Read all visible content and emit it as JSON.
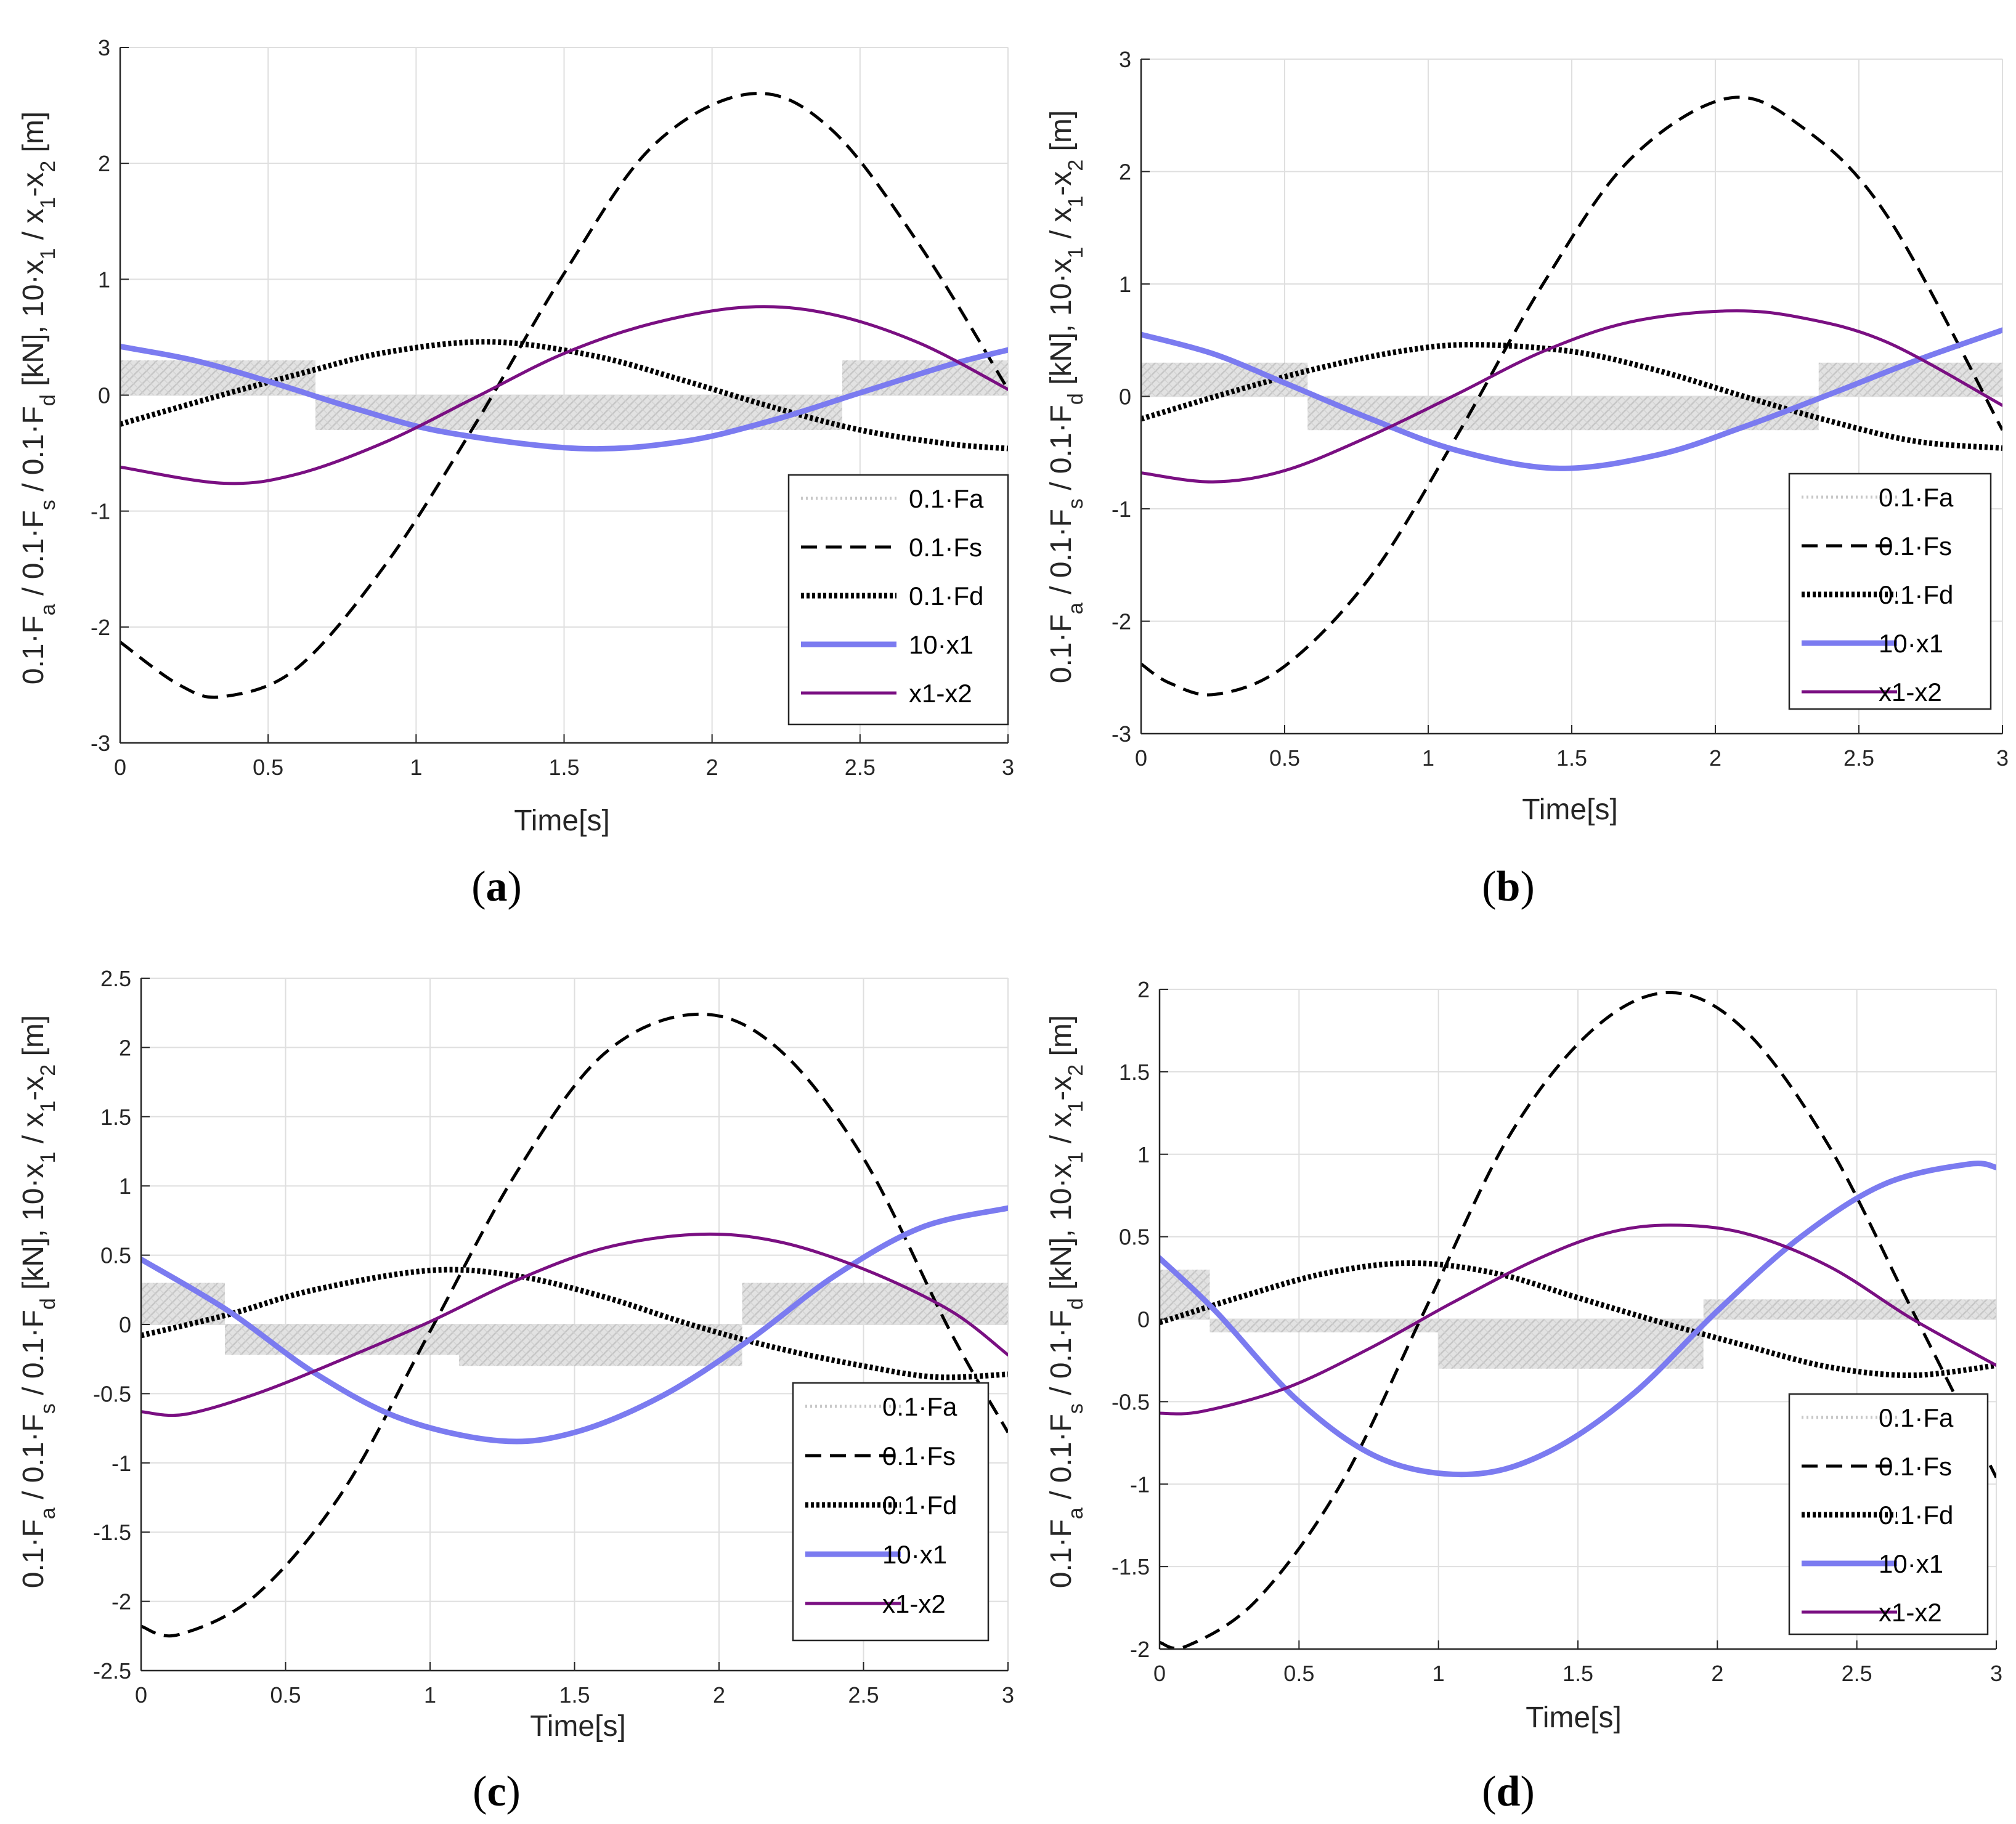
{
  "chart_data": [
    {
      "type": "line",
      "caption": "a",
      "xlabel": "Time[s]",
      "ylabel": "0.1·F_a / 0.1·F_s / 0.1·F_d [kN], 10·x_1 / x_1-x_2 [m]",
      "xlim": [
        0,
        3
      ],
      "ylim": [
        -3,
        3
      ],
      "xticks": [
        0,
        0.5,
        1,
        1.5,
        2,
        2.5,
        3
      ],
      "yticks": [
        -3,
        -2,
        -1,
        0,
        1,
        2,
        3
      ],
      "xtick_labels": [
        "0",
        "0.5",
        "1",
        "1.5",
        "2",
        "2.5",
        "3"
      ],
      "ytick_labels": [
        "-3",
        "-2",
        "-1",
        "0",
        "1",
        "2",
        "3"
      ],
      "grid": true,
      "legend_position": "bottom-right",
      "fa_band": {
        "segments": [
          [
            0,
            0.66,
            0,
            0.3
          ],
          [
            0.66,
            2.44,
            -0.3,
            0
          ],
          [
            2.44,
            3,
            0,
            0.3
          ]
        ]
      },
      "series": [
        {
          "name": "0.1·Fa",
          "style": "fa",
          "x": [],
          "y": []
        },
        {
          "name": "0.1·Fs",
          "style": "dashed",
          "x": [
            0,
            0.2,
            0.35,
            0.6,
            0.9,
            1.2,
            1.5,
            1.8,
            2.13,
            2.4,
            2.7,
            3
          ],
          "y": [
            -2.13,
            -2.5,
            -2.6,
            -2.35,
            -1.45,
            -0.25,
            1.05,
            2.15,
            2.6,
            2.3,
            1.3,
            0.05
          ]
        },
        {
          "name": "0.1·Fd",
          "style": "dotted",
          "x": [
            0,
            0.3,
            0.6,
            0.9,
            1.25,
            1.6,
            1.9,
            2.2,
            2.5,
            2.8,
            3
          ],
          "y": [
            -0.25,
            -0.03,
            0.18,
            0.37,
            0.46,
            0.34,
            0.13,
            -0.1,
            -0.3,
            -0.42,
            -0.46
          ]
        },
        {
          "name": "10·x1",
          "style": "blue",
          "x": [
            0,
            0.25,
            0.5,
            0.8,
            1.1,
            1.55,
            1.9,
            2.2,
            2.5,
            2.8,
            3
          ],
          "y": [
            0.42,
            0.3,
            0.12,
            -0.12,
            -0.32,
            -0.46,
            -0.4,
            -0.22,
            0.02,
            0.26,
            0.39
          ]
        },
        {
          "name": "x1-x2",
          "style": "purple",
          "x": [
            0,
            0.35,
            0.6,
            0.9,
            1.2,
            1.5,
            1.8,
            2.12,
            2.4,
            2.7,
            3
          ],
          "y": [
            -0.62,
            -0.76,
            -0.68,
            -0.4,
            -0.02,
            0.36,
            0.62,
            0.76,
            0.7,
            0.45,
            0.05
          ]
        }
      ]
    },
    {
      "type": "line",
      "caption": "b",
      "xlabel": "Time[s]",
      "ylabel": "0.1·F_a / 0.1·F_s / 0.1·F_d [kN], 10·x_1 / x_1-x_2 [m]",
      "xlim": [
        0,
        3
      ],
      "ylim": [
        -3,
        3
      ],
      "xticks": [
        0,
        0.5,
        1,
        1.5,
        2,
        2.5,
        3
      ],
      "yticks": [
        -3,
        -2,
        -1,
        0,
        1,
        2,
        3
      ],
      "xtick_labels": [
        "0",
        "0.5",
        "1",
        "1.5",
        "2",
        "2.5",
        "3"
      ],
      "ytick_labels": [
        "-3",
        "-2",
        "-1",
        "0",
        "1",
        "2",
        "3"
      ],
      "grid": true,
      "legend_position": "bottom-right",
      "fa_band": {
        "segments": [
          [
            0,
            0.58,
            0,
            0.3
          ],
          [
            0.58,
            2.36,
            -0.3,
            0
          ],
          [
            2.36,
            3,
            0,
            0.3
          ]
        ]
      },
      "series": [
        {
          "name": "0.1·Fa",
          "style": "fa",
          "x": [],
          "y": []
        },
        {
          "name": "0.1·Fs",
          "style": "dashed",
          "x": [
            0,
            0.1,
            0.26,
            0.5,
            0.8,
            1.1,
            1.4,
            1.7,
            2.04,
            2.3,
            2.6,
            3
          ],
          "y": [
            -2.38,
            -2.55,
            -2.65,
            -2.4,
            -1.6,
            -0.35,
            1.0,
            2.1,
            2.65,
            2.4,
            1.6,
            -0.3
          ]
        },
        {
          "name": "0.1·Fd",
          "style": "dotted",
          "x": [
            0,
            0.3,
            0.6,
            0.9,
            1.15,
            1.5,
            1.8,
            2.1,
            2.4,
            2.7,
            3
          ],
          "y": [
            -0.2,
            0.03,
            0.24,
            0.4,
            0.46,
            0.4,
            0.23,
            0.0,
            -0.22,
            -0.4,
            -0.46
          ]
        },
        {
          "name": "10·x1",
          "style": "blue",
          "x": [
            0,
            0.25,
            0.5,
            0.8,
            1.1,
            1.45,
            1.8,
            2.1,
            2.4,
            2.7,
            3
          ],
          "y": [
            0.55,
            0.38,
            0.12,
            -0.2,
            -0.48,
            -0.64,
            -0.52,
            -0.27,
            0.02,
            0.32,
            0.59
          ]
        },
        {
          "name": "x1-x2",
          "style": "purple",
          "x": [
            0,
            0.25,
            0.5,
            0.8,
            1.1,
            1.4,
            1.7,
            2.04,
            2.3,
            2.6,
            3
          ],
          "y": [
            -0.68,
            -0.76,
            -0.66,
            -0.35,
            0.02,
            0.4,
            0.66,
            0.76,
            0.7,
            0.48,
            -0.08
          ]
        }
      ]
    },
    {
      "type": "line",
      "caption": "c",
      "xlabel": "Time[s]",
      "ylabel": "0.1·F_a / 0.1·F_s / 0.1·F_d [kN], 10·x_1 / x_1-x_2 [m]",
      "xlim": [
        0,
        3
      ],
      "ylim": [
        -2.5,
        2.5
      ],
      "xticks": [
        0,
        0.5,
        1,
        1.5,
        2,
        2.5,
        3
      ],
      "yticks": [
        -2.5,
        -2,
        -1.5,
        -1,
        -0.5,
        0,
        0.5,
        1,
        1.5,
        2,
        2.5
      ],
      "xtick_labels": [
        "0",
        "0.5",
        "1",
        "1.5",
        "2",
        "2.5",
        "3"
      ],
      "ytick_labels": [
        "-2.5",
        "-2",
        "-1.5",
        "-1",
        "-0.5",
        "0",
        "0.5",
        "1",
        "1.5",
        "2",
        "2.5"
      ],
      "grid": true,
      "legend_position": "bottom-right",
      "fa_band": {
        "segments": [
          [
            0,
            0.29,
            0,
            0.3
          ],
          [
            0.29,
            1.1,
            -0.22,
            0
          ],
          [
            1.1,
            2.08,
            -0.3,
            0
          ],
          [
            2.08,
            3,
            0,
            0.3
          ]
        ]
      },
      "series": [
        {
          "name": "0.1·Fa",
          "style": "fa",
          "x": [],
          "y": []
        },
        {
          "name": "0.1·Fs",
          "style": "dashed",
          "x": [
            0,
            0.13,
            0.4,
            0.7,
            1.0,
            1.3,
            1.6,
            1.92,
            2.2,
            2.5,
            2.8,
            3
          ],
          "y": [
            -2.18,
            -2.24,
            -1.95,
            -1.2,
            -0.05,
            1.1,
            1.95,
            2.24,
            2.0,
            1.2,
            -0.05,
            -0.78
          ]
        },
        {
          "name": "0.1·Fd",
          "style": "dotted",
          "x": [
            0,
            0.3,
            0.6,
            1.0,
            1.3,
            1.6,
            1.9,
            2.2,
            2.5,
            2.75,
            3
          ],
          "y": [
            -0.08,
            0.07,
            0.25,
            0.39,
            0.35,
            0.2,
            0.0,
            -0.17,
            -0.3,
            -0.38,
            -0.36
          ]
        },
        {
          "name": "10·x1",
          "style": "blue",
          "x": [
            0,
            0.3,
            0.6,
            0.9,
            1.24,
            1.5,
            1.8,
            2.1,
            2.4,
            2.7,
            3
          ],
          "y": [
            0.47,
            0.1,
            -0.35,
            -0.68,
            -0.84,
            -0.78,
            -0.52,
            -0.12,
            0.35,
            0.7,
            0.84
          ]
        },
        {
          "name": "x1-x2",
          "style": "purple",
          "x": [
            0,
            0.15,
            0.4,
            0.7,
            1.0,
            1.3,
            1.6,
            1.92,
            2.2,
            2.5,
            2.8,
            3
          ],
          "y": [
            -0.63,
            -0.65,
            -0.5,
            -0.25,
            0.02,
            0.32,
            0.55,
            0.65,
            0.6,
            0.4,
            0.1,
            -0.22
          ]
        }
      ]
    },
    {
      "type": "line",
      "caption": "d",
      "xlabel": "Time[s]",
      "ylabel": "0.1·F_a / 0.1·F_s / 0.1·F_d [kN], 10·x_1 / x_1-x_2 [m]",
      "xlim": [
        0,
        3
      ],
      "ylim": [
        -2,
        2
      ],
      "xticks": [
        0,
        0.5,
        1,
        1.5,
        2,
        2.5,
        3
      ],
      "yticks": [
        -2,
        -1.5,
        -1,
        -0.5,
        0,
        0.5,
        1,
        1.5,
        2
      ],
      "xtick_labels": [
        "0",
        "0.5",
        "1",
        "1.5",
        "2",
        "2.5",
        "3"
      ],
      "ytick_labels": [
        "-2",
        "-1.5",
        "-1",
        "-0.5",
        "0",
        "0.5",
        "1",
        "1.5",
        "2"
      ],
      "grid": true,
      "legend_position": "bottom-right",
      "fa_band": {
        "segments": [
          [
            0,
            0.18,
            0,
            0.3
          ],
          [
            0.18,
            1.0,
            -0.08,
            0
          ],
          [
            1.0,
            1.95,
            -0.3,
            0
          ],
          [
            1.95,
            3,
            0,
            0.12
          ]
        ]
      },
      "series": [
        {
          "name": "0.1·Fa",
          "style": "fa",
          "x": [],
          "y": []
        },
        {
          "name": "0.1·Fs",
          "style": "dashed",
          "x": [
            0,
            0.1,
            0.35,
            0.65,
            0.95,
            1.25,
            1.55,
            1.83,
            2.1,
            2.4,
            2.7,
            3
          ],
          "y": [
            -1.96,
            -1.98,
            -1.7,
            -1.0,
            0.05,
            1.1,
            1.75,
            1.98,
            1.75,
            1.05,
            0.05,
            -0.96
          ]
        },
        {
          "name": "0.1·Fd",
          "style": "dotted",
          "x": [
            0,
            0.3,
            0.6,
            0.9,
            1.2,
            1.5,
            1.8,
            2.1,
            2.4,
            2.7,
            3
          ],
          "y": [
            -0.02,
            0.14,
            0.28,
            0.34,
            0.28,
            0.13,
            -0.02,
            -0.16,
            -0.29,
            -0.34,
            -0.28
          ]
        },
        {
          "name": "10·x1",
          "style": "blue",
          "x": [
            0,
            0.2,
            0.5,
            0.8,
            1.12,
            1.4,
            1.7,
            2.0,
            2.3,
            2.6,
            2.9,
            3
          ],
          "y": [
            0.37,
            0.05,
            -0.5,
            -0.85,
            -0.94,
            -0.8,
            -0.45,
            0.05,
            0.5,
            0.82,
            0.94,
            0.92
          ]
        },
        {
          "name": "x1-x2",
          "style": "purple",
          "x": [
            0,
            0.15,
            0.45,
            0.75,
            1.05,
            1.35,
            1.6,
            1.83,
            2.1,
            2.4,
            2.7,
            3
          ],
          "y": [
            -0.57,
            -0.56,
            -0.42,
            -0.18,
            0.1,
            0.36,
            0.52,
            0.57,
            0.52,
            0.32,
            0.0,
            -0.28
          ]
        }
      ]
    }
  ]
}
